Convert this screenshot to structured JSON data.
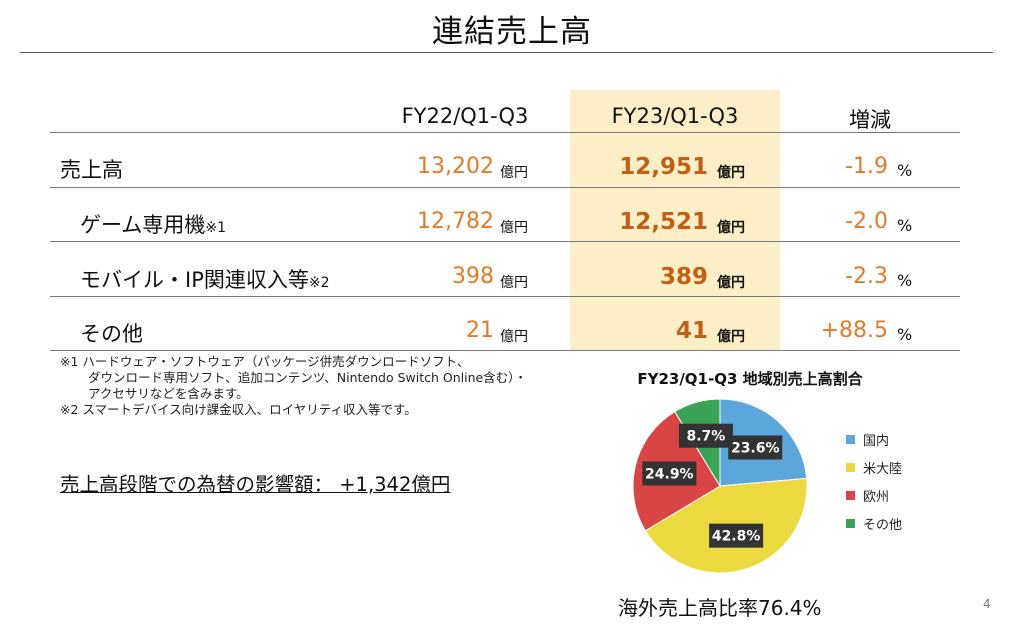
{
  "slide": {
    "title": "連結売上高",
    "page_number": "4"
  },
  "table": {
    "headers": {
      "col1": "FY22/Q1-Q3",
      "col2": "FY23/Q1-Q3",
      "col3": "増減"
    },
    "unit": "億円",
    "pct_unit": "%",
    "rows": [
      {
        "label": "売上高",
        "note": "",
        "fy22": "13,202",
        "fy23": "12,951",
        "change": "-1.9"
      },
      {
        "label": "ゲーム専用機",
        "note": "※1",
        "fy22": "12,782",
        "fy23": "12,521",
        "change": "-2.0"
      },
      {
        "label": "モバイル・IP関連収入等",
        "note": "※2",
        "fy22": "398",
        "fy23": "389",
        "change": "-2.3"
      },
      {
        "label": "その他",
        "note": "",
        "fy22": "21",
        "fy23": "41",
        "change": "+88.5"
      }
    ]
  },
  "footnotes": {
    "n1_line1": "※1 ハードウェア・ソフトウェア（パッケージ併売ダウンロードソフト、",
    "n1_line2": "ダウンロード専用ソフト、追加コンテンツ、Nintendo Switch Online含む）・",
    "n1_line3": "アクセサリなどを含みます。",
    "n2": "※2 スマートデバイス向け課金収入、ロイヤリティ収入等です。"
  },
  "fx_impact": "売上高段階での為替の影響額： +1,342億円",
  "overseas_ratio": "海外売上高比率76.4%",
  "chart_data": {
    "type": "pie",
    "title": "FY23/Q1-Q3 地域別売上高割合",
    "legend_position": "right",
    "slices": [
      {
        "name": "国内",
        "value": 23.6,
        "label": "23.6%",
        "color": "#5ba7dc"
      },
      {
        "name": "米大陸",
        "value": 42.8,
        "label": "42.8%",
        "color": "#ecd93f"
      },
      {
        "name": "欧州",
        "value": 24.9,
        "label": "24.9%",
        "color": "#d94444"
      },
      {
        "name": "その他",
        "value": 8.7,
        "label": "8.7%",
        "color": "#3aa356"
      }
    ]
  },
  "colors": {
    "value_orange": "#e07b2a",
    "value_bold_orange": "#c25f15",
    "highlight_column": "#fcefc7",
    "pie_label_bg": "#333333"
  }
}
